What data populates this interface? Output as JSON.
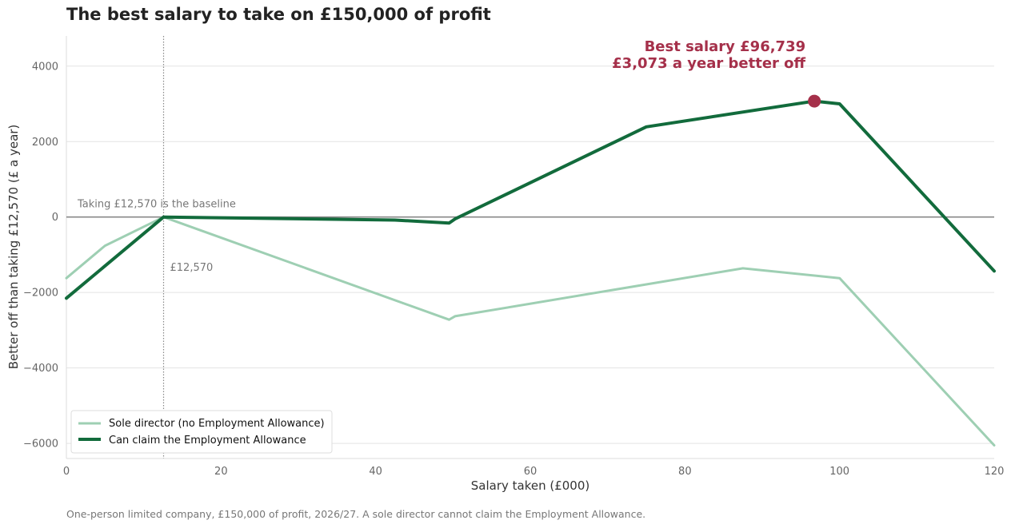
{
  "chart_data": {
    "type": "line",
    "title": "The best salary to take on £150,000 of profit",
    "xlabel": "Salary taken (£000)",
    "ylabel": "Better off than taking £12,570 (£ a year)",
    "xlim": [
      0,
      120
    ],
    "ylim": [
      -6400,
      4800
    ],
    "x_ticks": [
      0,
      20,
      40,
      60,
      80,
      100,
      120
    ],
    "y_ticks": [
      -6000,
      -4000,
      -2000,
      0,
      2000,
      4000
    ],
    "x_tick_labels": [
      "0",
      "20",
      "40",
      "60",
      "80",
      "100",
      "120"
    ],
    "y_tick_labels": [
      "−6000",
      "−4000",
      "−2000",
      "0",
      "2000",
      "4000"
    ],
    "grid": "horizontal",
    "legend_position": "bottom-left",
    "series": [
      {
        "name": "Sole director (no Employment Allowance)",
        "color": "#9ecfb3",
        "x": [
          0,
          5,
          12.57,
          49.5,
          50.27,
          87.5,
          100,
          120
        ],
        "y": [
          -1620,
          -760,
          0,
          -2720,
          -2630,
          -1360,
          -1620,
          -6050
        ]
      },
      {
        "name": "Can claim the Employment Allowance",
        "color": "#126b3c",
        "x": [
          0,
          12.57,
          42.5,
          49.5,
          50.27,
          75,
          96.739,
          100,
          120
        ],
        "y": [
          -2150,
          0,
          -80,
          -160,
          -50,
          2390,
          3073,
          3000,
          -1430
        ]
      }
    ],
    "baseline": {
      "y": 0,
      "label": "Taking £12,570 is the baseline",
      "color": "#888888"
    },
    "vline": {
      "x": 12.57,
      "label": "£12,570"
    },
    "highlight": {
      "x": 96.739,
      "y": 3073,
      "color": "#a5304a",
      "line1": "Best salary £96,739",
      "line2": "£3,073 a year better off"
    },
    "footnote": "One-person limited company, £150,000 of profit, 2026/27. A sole director cannot claim the Employment Allowance."
  }
}
